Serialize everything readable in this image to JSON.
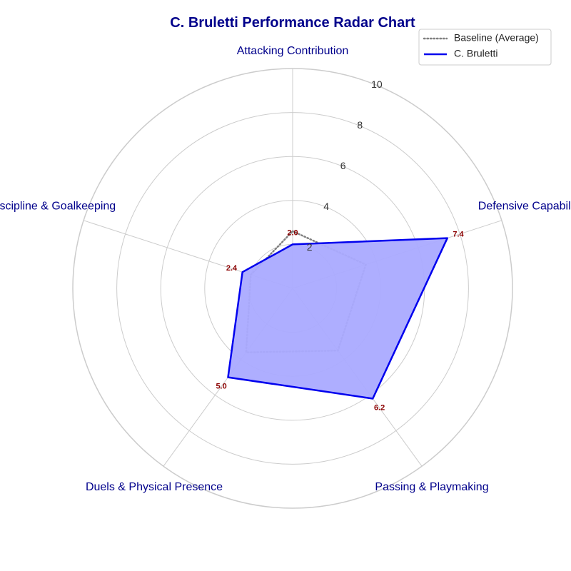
{
  "chart_data": {
    "type": "radar",
    "title": "C. Bruletti Performance Radar Chart",
    "categories": [
      "Attacking Contribution",
      "Defensive Capability",
      "Passing & Playmaking",
      "Duels & Physical Presence",
      "Discipline & Goalkeeping"
    ],
    "rlim": [
      0,
      10
    ],
    "rticks": [
      2,
      4,
      6,
      8,
      10
    ],
    "rtick_labels": [
      "2",
      "4",
      "6",
      "8",
      "10"
    ],
    "grid": true,
    "legend_position": "top-right",
    "series": [
      {
        "name": "Baseline (Average)",
        "values": [
          2.6,
          3.5,
          3.5,
          3.6,
          2.0
        ],
        "color": "#808080",
        "style": "dotted",
        "fill": false,
        "show_value_labels": false
      },
      {
        "name": "C. Bruletti",
        "values": [
          2.0,
          7.4,
          6.2,
          5.0,
          2.4
        ],
        "value_labels": [
          "2.0",
          "7.4",
          "6.2",
          "5.0",
          "2.4"
        ],
        "color": "#0000ee",
        "fill_color": "#aaaaff",
        "style": "solid",
        "fill": true,
        "show_value_labels": true
      }
    ]
  },
  "colors": {
    "title": "#00008b",
    "axis_label": "#00008b",
    "value_label": "#8b0000",
    "grid": "#cccccc"
  }
}
